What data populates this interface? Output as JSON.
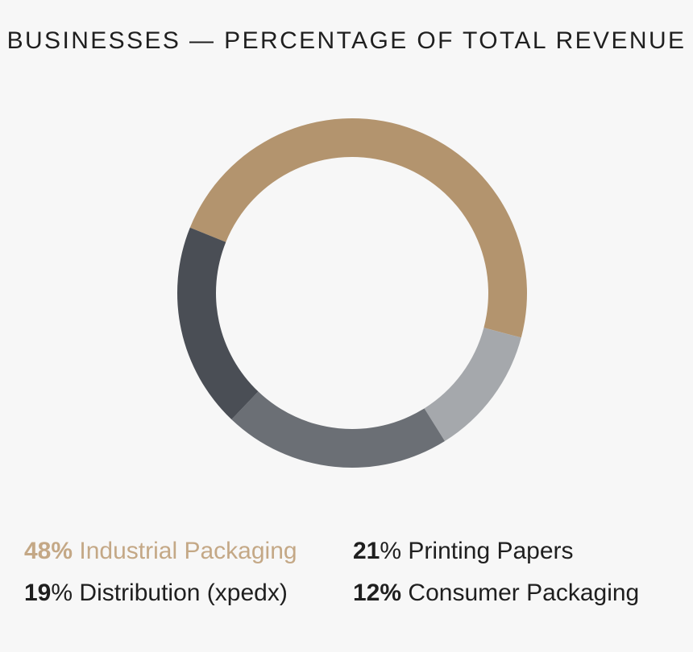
{
  "chart_data": {
    "type": "pie",
    "title": "BUSINESSES — PERCENTAGE OF TOTAL REVENUE",
    "categories": [
      "Industrial Packaging",
      "Consumer Packaging",
      "Printing Papers",
      "Distribution (xpedx)"
    ],
    "values": [
      48,
      12,
      21,
      19
    ],
    "colors": [
      "#b3946e",
      "#a5a8ac",
      "#6b6f75",
      "#4a4e55"
    ],
    "legend": [
      {
        "value": "48",
        "sign": "%",
        "label": "Industrial Packaging",
        "color": "#b3946e",
        "text_color": "#c4a886"
      },
      {
        "value": "21",
        "sign": "%",
        "label": "Printing Papers",
        "color": "#6b6f75",
        "text_color": "#1f1f1f"
      },
      {
        "value": "19",
        "sign": "%",
        "label": "Distribution (xpedx)",
        "color": "#4a4e55",
        "text_color": "#1f1f1f"
      },
      {
        "value": "12",
        "sign": "%",
        "label": "Consumer Packaging",
        "color": "#a5a8ac",
        "text_color": "#1f1f1f"
      }
    ]
  }
}
